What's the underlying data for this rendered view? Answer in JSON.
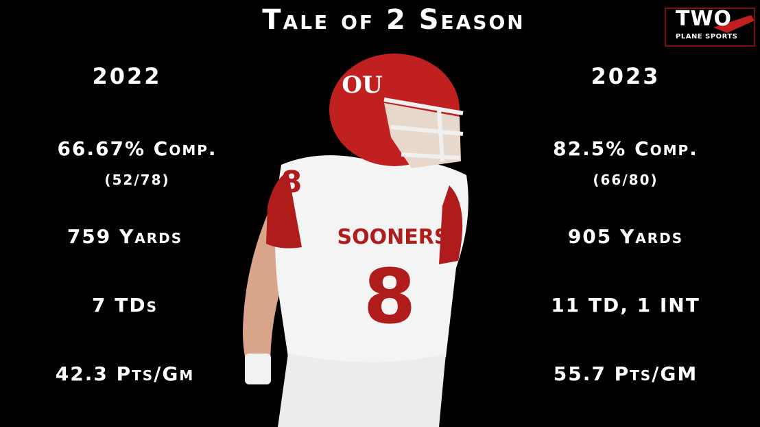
{
  "header": {
    "title": "Tale of 2 Season"
  },
  "logo": {
    "name": "TWO",
    "tagline": "PLANE SPORTS"
  },
  "columns": [
    {
      "year": "2022",
      "completion": "66.67% Comp.",
      "attempts": "(52/78)",
      "yards": "759 Yards",
      "touchdowns": "7 TDs",
      "points": "42.3 Pts/Gm"
    },
    {
      "year": "2023",
      "completion": "82.5% Comp.",
      "attempts": "(66/80)",
      "yards": "905 Yards",
      "touchdowns": "11 TD, 1 INT",
      "points": "55.7 Pts/GM"
    }
  ],
  "player": {
    "helmet_logo": "OU",
    "jersey_text": "SOONERS",
    "number": "8"
  }
}
